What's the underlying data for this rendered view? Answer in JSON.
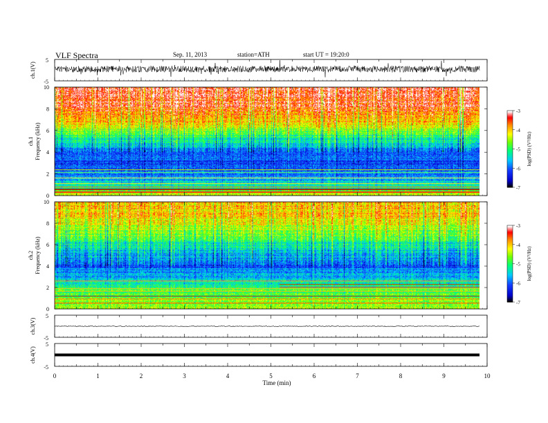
{
  "header": {
    "title": "VLF  Spectra",
    "date": "Sep. 11, 2013",
    "station": "station=ATH",
    "start": "start  UT =   19:20:0"
  },
  "colorbar": {
    "label": "log(PSD) (V²/Hz)",
    "ticks": [
      "-3",
      "-4",
      "-5",
      "-6",
      "-7"
    ],
    "colors": [
      "#000000",
      "#1010ff",
      "#00c8ff",
      "#00ff60",
      "#ffff00",
      "#ff8000",
      "#ff0000",
      "#ffffff"
    ]
  },
  "chart_data": [
    {
      "type": "line",
      "channel": "ch.1",
      "ylabel": "ch.1(V)",
      "ylim": [
        -5,
        5
      ],
      "yticks": [
        "5",
        "-5"
      ],
      "xlim": [
        0,
        10
      ],
      "description_values": {
        "baseline_v": 0.5,
        "noise_amplitude_v": 1.5
      }
    },
    {
      "type": "heatmap",
      "channel": "ch.1",
      "ylabel_top": "ch.1",
      "ylabel": "Frequency  (kHz)",
      "ylim": [
        0,
        10
      ],
      "yticks": [
        "0",
        "2",
        "4",
        "6",
        "8",
        "10"
      ],
      "xlim": [
        0,
        9.8
      ],
      "clim": [
        -7,
        -3
      ],
      "profile_khz": [
        0,
        1,
        2,
        3,
        4,
        5,
        6,
        7,
        8,
        9,
        10
      ],
      "profile_logpsd": [
        -4.2,
        -5.4,
        -5.9,
        -6.1,
        -5.9,
        -5.3,
        -4.6,
        -3.9,
        -3.5,
        -3.3,
        -3.3
      ]
    },
    {
      "type": "heatmap",
      "channel": "ch.2",
      "ylabel_top": "ch.2",
      "ylabel": "Frequency  (kHz)",
      "ylim": [
        0,
        10
      ],
      "yticks": [
        "0",
        "2",
        "4",
        "6",
        "8",
        "10"
      ],
      "xlim": [
        0,
        9.8
      ],
      "clim": [
        -7,
        -3
      ],
      "profile_khz": [
        0,
        1,
        2,
        3,
        4,
        5,
        6,
        7,
        8,
        9,
        10
      ],
      "profile_logpsd": [
        -4.5,
        -4.8,
        -5.0,
        -5.6,
        -6.0,
        -5.7,
        -5.2,
        -4.7,
        -4.2,
        -4.0,
        -3.9
      ]
    },
    {
      "type": "line",
      "channel": "ch.3",
      "ylabel": "ch.3(V)",
      "ylim": [
        -5,
        5
      ],
      "yticks": [
        "5",
        "-5"
      ],
      "xlim": [
        0,
        9.8
      ],
      "description_values": {
        "baseline_v": 0.0
      }
    },
    {
      "type": "line",
      "channel": "ch.4",
      "ylabel": "ch.4(V)",
      "ylim": [
        -5,
        5
      ],
      "yticks": [
        "5",
        "-5"
      ],
      "xlim": [
        0,
        9.8
      ],
      "description_values": {
        "baseline_v": 0.0
      }
    }
  ],
  "xaxis": {
    "label": "Time  (min)",
    "ticks": [
      "0",
      "1",
      "2",
      "3",
      "4",
      "5",
      "6",
      "7",
      "8",
      "9",
      "10"
    ],
    "xlim": [
      0,
      10
    ]
  }
}
